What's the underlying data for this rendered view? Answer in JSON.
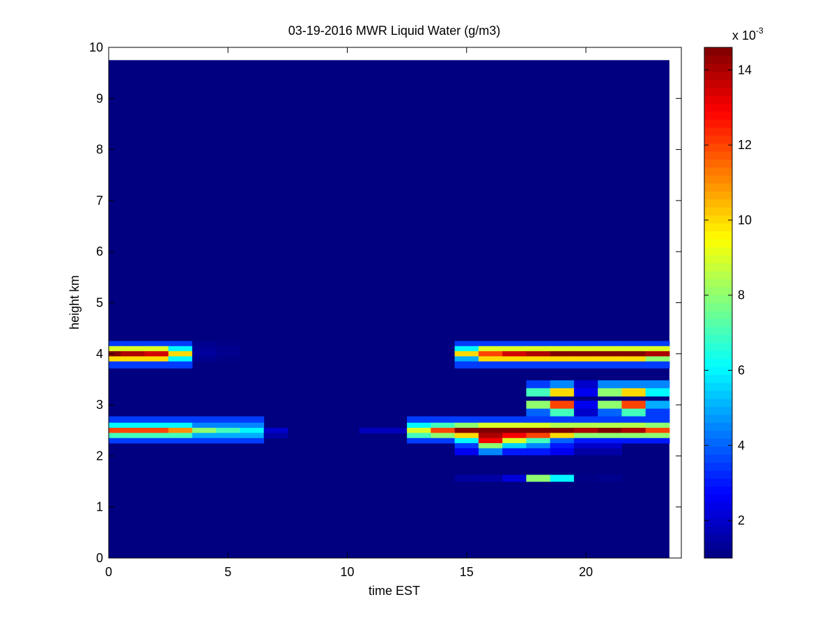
{
  "chart_data": {
    "type": "heatmap",
    "title": "03-19-2016 MWR Liquid Water (g/m3)",
    "xlabel": "time EST",
    "ylabel": "height km",
    "xlim": [
      0,
      24
    ],
    "ylim": [
      0,
      10
    ],
    "x_ticks": [
      "0",
      "5",
      "10",
      "15",
      "20"
    ],
    "y_ticks": [
      "0",
      "1",
      "2",
      "3",
      "4",
      "5",
      "6",
      "7",
      "8",
      "9",
      "10"
    ],
    "time_bins": [
      0,
      1,
      2,
      3,
      4,
      5,
      6,
      7,
      8,
      9,
      10,
      11,
      12,
      13,
      14,
      15,
      16,
      17,
      18,
      19,
      20,
      21,
      22,
      23
    ],
    "data_extent": {
      "time_max": 23.5,
      "height_max": 9.75
    },
    "background_value": 1.0,
    "colorbar": {
      "min": 1.0,
      "max": 14.6,
      "ticks": [
        "2",
        "4",
        "6",
        "8",
        "10",
        "12",
        "14"
      ],
      "tick_values": [
        2,
        4,
        6,
        8,
        10,
        12,
        14
      ],
      "exponent_base": "x 10",
      "exponent_power": "-3"
    },
    "grid": false,
    "layers": [
      {
        "height": 4.2,
        "values": [
          3.5,
          3.5,
          3.5,
          3.5,
          1.2,
          1.1,
          1,
          1,
          1,
          1,
          1,
          1,
          1,
          1,
          1,
          3.5,
          3.5,
          3.5,
          3.5,
          3.5,
          3.5,
          3.5,
          3.5,
          3.5
        ]
      },
      {
        "height": 4.1,
        "values": [
          9,
          9,
          9,
          6,
          1.3,
          1.2,
          1,
          1,
          1,
          1,
          1,
          1,
          1,
          1,
          1,
          6,
          9,
          9,
          9,
          9,
          9,
          9,
          9,
          9
        ]
      },
      {
        "height": 4.0,
        "values": [
          14.6,
          14,
          13.5,
          10,
          1.4,
          1.2,
          1,
          1,
          1,
          1,
          1,
          1,
          1,
          1,
          1,
          10,
          12,
          13.5,
          14,
          14.6,
          14.6,
          14.6,
          14.6,
          14
        ]
      },
      {
        "height": 3.9,
        "values": [
          10,
          10,
          10,
          6,
          1.2,
          1.1,
          1,
          1,
          1,
          1,
          1,
          1,
          1,
          1,
          1,
          5,
          10,
          10,
          10,
          10,
          10,
          10,
          10,
          8
        ]
      },
      {
        "height": 3.8,
        "values": [
          3.5,
          3.5,
          3.5,
          3.5,
          1,
          1,
          1,
          1,
          1,
          1,
          1,
          1,
          1,
          1,
          1,
          3.5,
          3.5,
          3.5,
          3.5,
          3.5,
          3.5,
          3.5,
          3.5,
          3.5
        ]
      },
      {
        "height": 3.4,
        "values": [
          1,
          1,
          1,
          1,
          1,
          1,
          1,
          1,
          1,
          1,
          1,
          1,
          1,
          1,
          1,
          1,
          1,
          1,
          3.5,
          4.5,
          2,
          4.5,
          4.5,
          4.5
        ]
      },
      {
        "height": 3.25,
        "values": [
          1,
          1,
          1,
          1,
          1,
          1,
          1,
          1,
          1,
          1,
          1,
          1,
          1,
          1,
          1,
          1,
          1,
          1,
          7,
          10,
          2.5,
          8,
          10,
          6
        ]
      },
      {
        "height": 3.0,
        "values": [
          1,
          1,
          1,
          1,
          1,
          1,
          1,
          1,
          1,
          1,
          1,
          1,
          1,
          1,
          1,
          1,
          1,
          1,
          8,
          12,
          2.5,
          8,
          12,
          5
        ]
      },
      {
        "height": 2.85,
        "values": [
          1,
          1,
          1,
          1,
          1,
          1,
          1,
          1,
          1,
          1,
          1,
          1,
          1,
          1,
          1,
          1,
          1,
          1,
          4,
          7,
          2,
          4,
          7,
          3.5
        ]
      },
      {
        "height": 2.7,
        "values": [
          3.5,
          3.5,
          3.5,
          3.5,
          3.5,
          3.5,
          3.5,
          1,
          1,
          1,
          1,
          1,
          1,
          3.5,
          3.5,
          3.5,
          3.5,
          3.5,
          3.5,
          3.5,
          3.5,
          3.5,
          3.5,
          3.5
        ]
      },
      {
        "height": 2.6,
        "values": [
          6,
          6,
          6,
          6,
          4.5,
          4.5,
          4.5,
          1,
          1,
          1,
          1,
          1,
          1,
          6,
          7,
          8,
          9,
          9,
          9,
          8.5,
          8.5,
          8.5,
          8.5,
          8
        ]
      },
      {
        "height": 2.5,
        "values": [
          12,
          12,
          12,
          11,
          8,
          7,
          6,
          2,
          1,
          1,
          1,
          1.8,
          1.8,
          9,
          12,
          14.5,
          14.6,
          14.6,
          14.6,
          14.6,
          14,
          14.6,
          14,
          12
        ]
      },
      {
        "height": 2.4,
        "values": [
          7,
          7,
          7,
          7,
          5,
          5,
          5,
          1.5,
          1,
          1,
          1,
          1,
          1,
          7,
          8,
          10,
          14,
          13,
          12,
          10,
          8,
          8,
          8,
          8
        ]
      },
      {
        "height": 2.3,
        "values": [
          3.5,
          3.5,
          3.5,
          3.5,
          3.5,
          3.5,
          3.5,
          1,
          1,
          1,
          1,
          1,
          1,
          3.5,
          3.5,
          6,
          13,
          9,
          7,
          4,
          3,
          3,
          3,
          3
        ]
      },
      {
        "height": 2.2,
        "values": [
          1,
          1,
          1,
          1,
          1,
          1,
          1,
          1,
          1,
          1,
          1,
          1,
          1,
          1,
          1,
          3.5,
          8,
          5.5,
          4.5,
          3,
          2,
          2,
          1,
          1
        ]
      },
      {
        "height": 2.1,
        "values": [
          1,
          1,
          1,
          1,
          1,
          1,
          1,
          1,
          1,
          1,
          1,
          1,
          1,
          1,
          1,
          2.5,
          4.5,
          3,
          3,
          2.5,
          1.5,
          1.5,
          1,
          1
        ]
      },
      {
        "height": 1.55,
        "values": [
          1,
          1,
          1,
          1,
          1,
          1,
          1,
          1,
          1,
          1,
          1,
          1,
          1,
          1,
          1,
          1.4,
          1.5,
          2.2,
          8,
          6,
          1.1,
          1.2,
          1,
          1
        ]
      }
    ]
  }
}
